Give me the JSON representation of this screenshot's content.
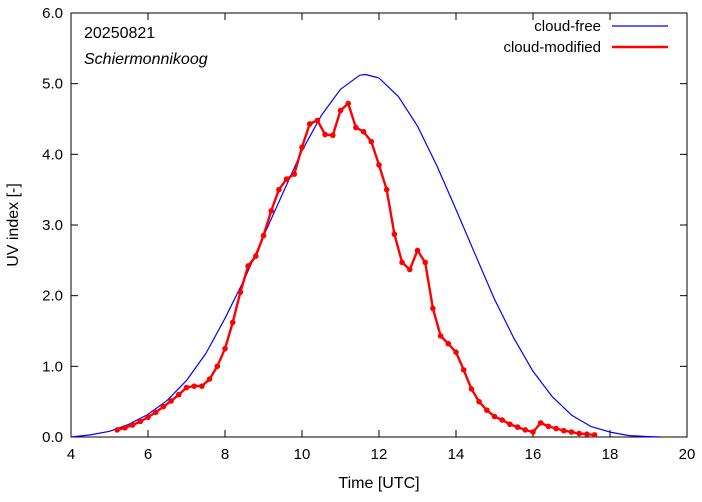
{
  "chart_data": {
    "type": "line",
    "annotations": [
      "20250821",
      "Schiermonnikoog"
    ],
    "xlabel": "Time  [UTC]",
    "ylabel": "UV index  [-]",
    "xlim": [
      4,
      20
    ],
    "ylim": [
      0,
      6
    ],
    "xticks": [
      4,
      6,
      8,
      10,
      12,
      14,
      16,
      18,
      20
    ],
    "xtick_labels": [
      "4",
      "6",
      "8",
      "10",
      "12",
      "14",
      "16",
      "18",
      "20"
    ],
    "yticks": [
      0,
      1,
      2,
      3,
      4,
      5,
      6
    ],
    "ytick_labels": [
      "0.0",
      "1.0",
      "2.0",
      "3.0",
      "4.0",
      "5.0",
      "6.0"
    ],
    "grid": false,
    "legend_position": "top-right",
    "series": [
      {
        "name": "cloud-free",
        "color": "#0000ff",
        "x": [
          4.0,
          4.5,
          5.0,
          5.5,
          6.0,
          6.5,
          7.0,
          7.5,
          8.0,
          8.5,
          9.0,
          9.5,
          10.0,
          10.5,
          11.0,
          11.5,
          11.65,
          12.0,
          12.5,
          13.0,
          13.5,
          14.0,
          14.5,
          15.0,
          15.5,
          16.0,
          16.5,
          17.0,
          17.5,
          18.0,
          18.5,
          19.0,
          19.3
        ],
        "y": [
          0.0,
          0.03,
          0.08,
          0.18,
          0.32,
          0.52,
          0.8,
          1.18,
          1.68,
          2.23,
          2.84,
          3.45,
          4.05,
          4.55,
          4.92,
          5.12,
          5.13,
          5.08,
          4.82,
          4.4,
          3.84,
          3.22,
          2.58,
          1.95,
          1.4,
          0.93,
          0.57,
          0.31,
          0.15,
          0.07,
          0.02,
          0.005,
          0.0
        ]
      },
      {
        "name": "cloud-modified",
        "color": "#ff0000",
        "x": [
          5.2,
          5.4,
          5.6,
          5.8,
          6.0,
          6.2,
          6.4,
          6.6,
          6.8,
          7.0,
          7.2,
          7.4,
          7.6,
          7.8,
          8.0,
          8.2,
          8.4,
          8.6,
          8.8,
          9.0,
          9.2,
          9.4,
          9.6,
          9.8,
          10.0,
          10.2,
          10.4,
          10.6,
          10.8,
          11.0,
          11.2,
          11.4,
          11.6,
          11.8,
          12.0,
          12.2,
          12.4,
          12.6,
          12.8,
          13.0,
          13.2,
          13.4,
          13.6,
          13.8,
          14.0,
          14.2,
          14.4,
          14.6,
          14.8,
          15.0,
          15.2,
          15.4,
          15.6,
          15.8,
          16.0,
          16.2,
          16.4,
          16.6,
          16.8,
          17.0,
          17.2,
          17.4,
          17.6
        ],
        "y": [
          0.1,
          0.13,
          0.17,
          0.22,
          0.28,
          0.35,
          0.43,
          0.51,
          0.6,
          0.7,
          0.72,
          0.72,
          0.82,
          1.0,
          1.25,
          1.62,
          2.05,
          2.42,
          2.56,
          2.85,
          3.2,
          3.5,
          3.65,
          3.72,
          4.1,
          4.43,
          4.48,
          4.28,
          4.27,
          4.62,
          4.72,
          4.38,
          4.32,
          4.18,
          3.85,
          3.5,
          2.87,
          2.47,
          2.37,
          2.64,
          2.47,
          1.82,
          1.43,
          1.32,
          1.2,
          0.95,
          0.68,
          0.5,
          0.38,
          0.29,
          0.24,
          0.18,
          0.14,
          0.1,
          0.07,
          0.2,
          0.15,
          0.12,
          0.09,
          0.07,
          0.05,
          0.04,
          0.03
        ]
      }
    ]
  }
}
